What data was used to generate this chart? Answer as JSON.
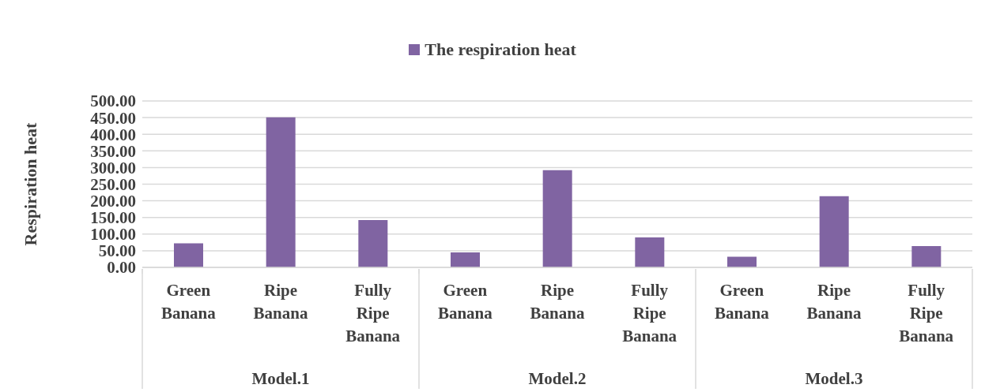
{
  "chart_data": {
    "type": "bar",
    "ylabel": "Respiration heat",
    "categories": [
      "Green Banana",
      "Ripe Banana",
      "Fully Ripe Banana",
      "Green Banana",
      "Ripe Banana",
      "Fully Ripe Banana",
      "Green Banana",
      "Ripe Banana",
      "Fully Ripe Banana"
    ],
    "series": [
      {
        "name": "The respiration heat",
        "color": "#8064a2",
        "values": [
          72,
          451,
          142,
          45,
          292,
          90,
          32,
          214,
          64
        ]
      }
    ],
    "annotations": [
      "Model.1",
      "Model.2",
      "Model.3"
    ],
    "ylim": [
      0,
      500
    ],
    "yticks": [
      {
        "value": 0,
        "label": "0.00"
      },
      {
        "value": 50,
        "label": "50.00"
      },
      {
        "value": 100,
        "label": "100.00"
      },
      {
        "value": 150,
        "label": "150.00"
      },
      {
        "value": 200,
        "label": "200.00"
      },
      {
        "value": 250,
        "label": "250.00"
      },
      {
        "value": 300,
        "label": "300.00"
      },
      {
        "value": 350,
        "label": "350.00"
      },
      {
        "value": 400,
        "label": "400.00"
      },
      {
        "value": 450,
        "label": "450.00"
      },
      {
        "value": 500,
        "label": "500.00"
      }
    ],
    "grid": "y",
    "legend": "top"
  }
}
